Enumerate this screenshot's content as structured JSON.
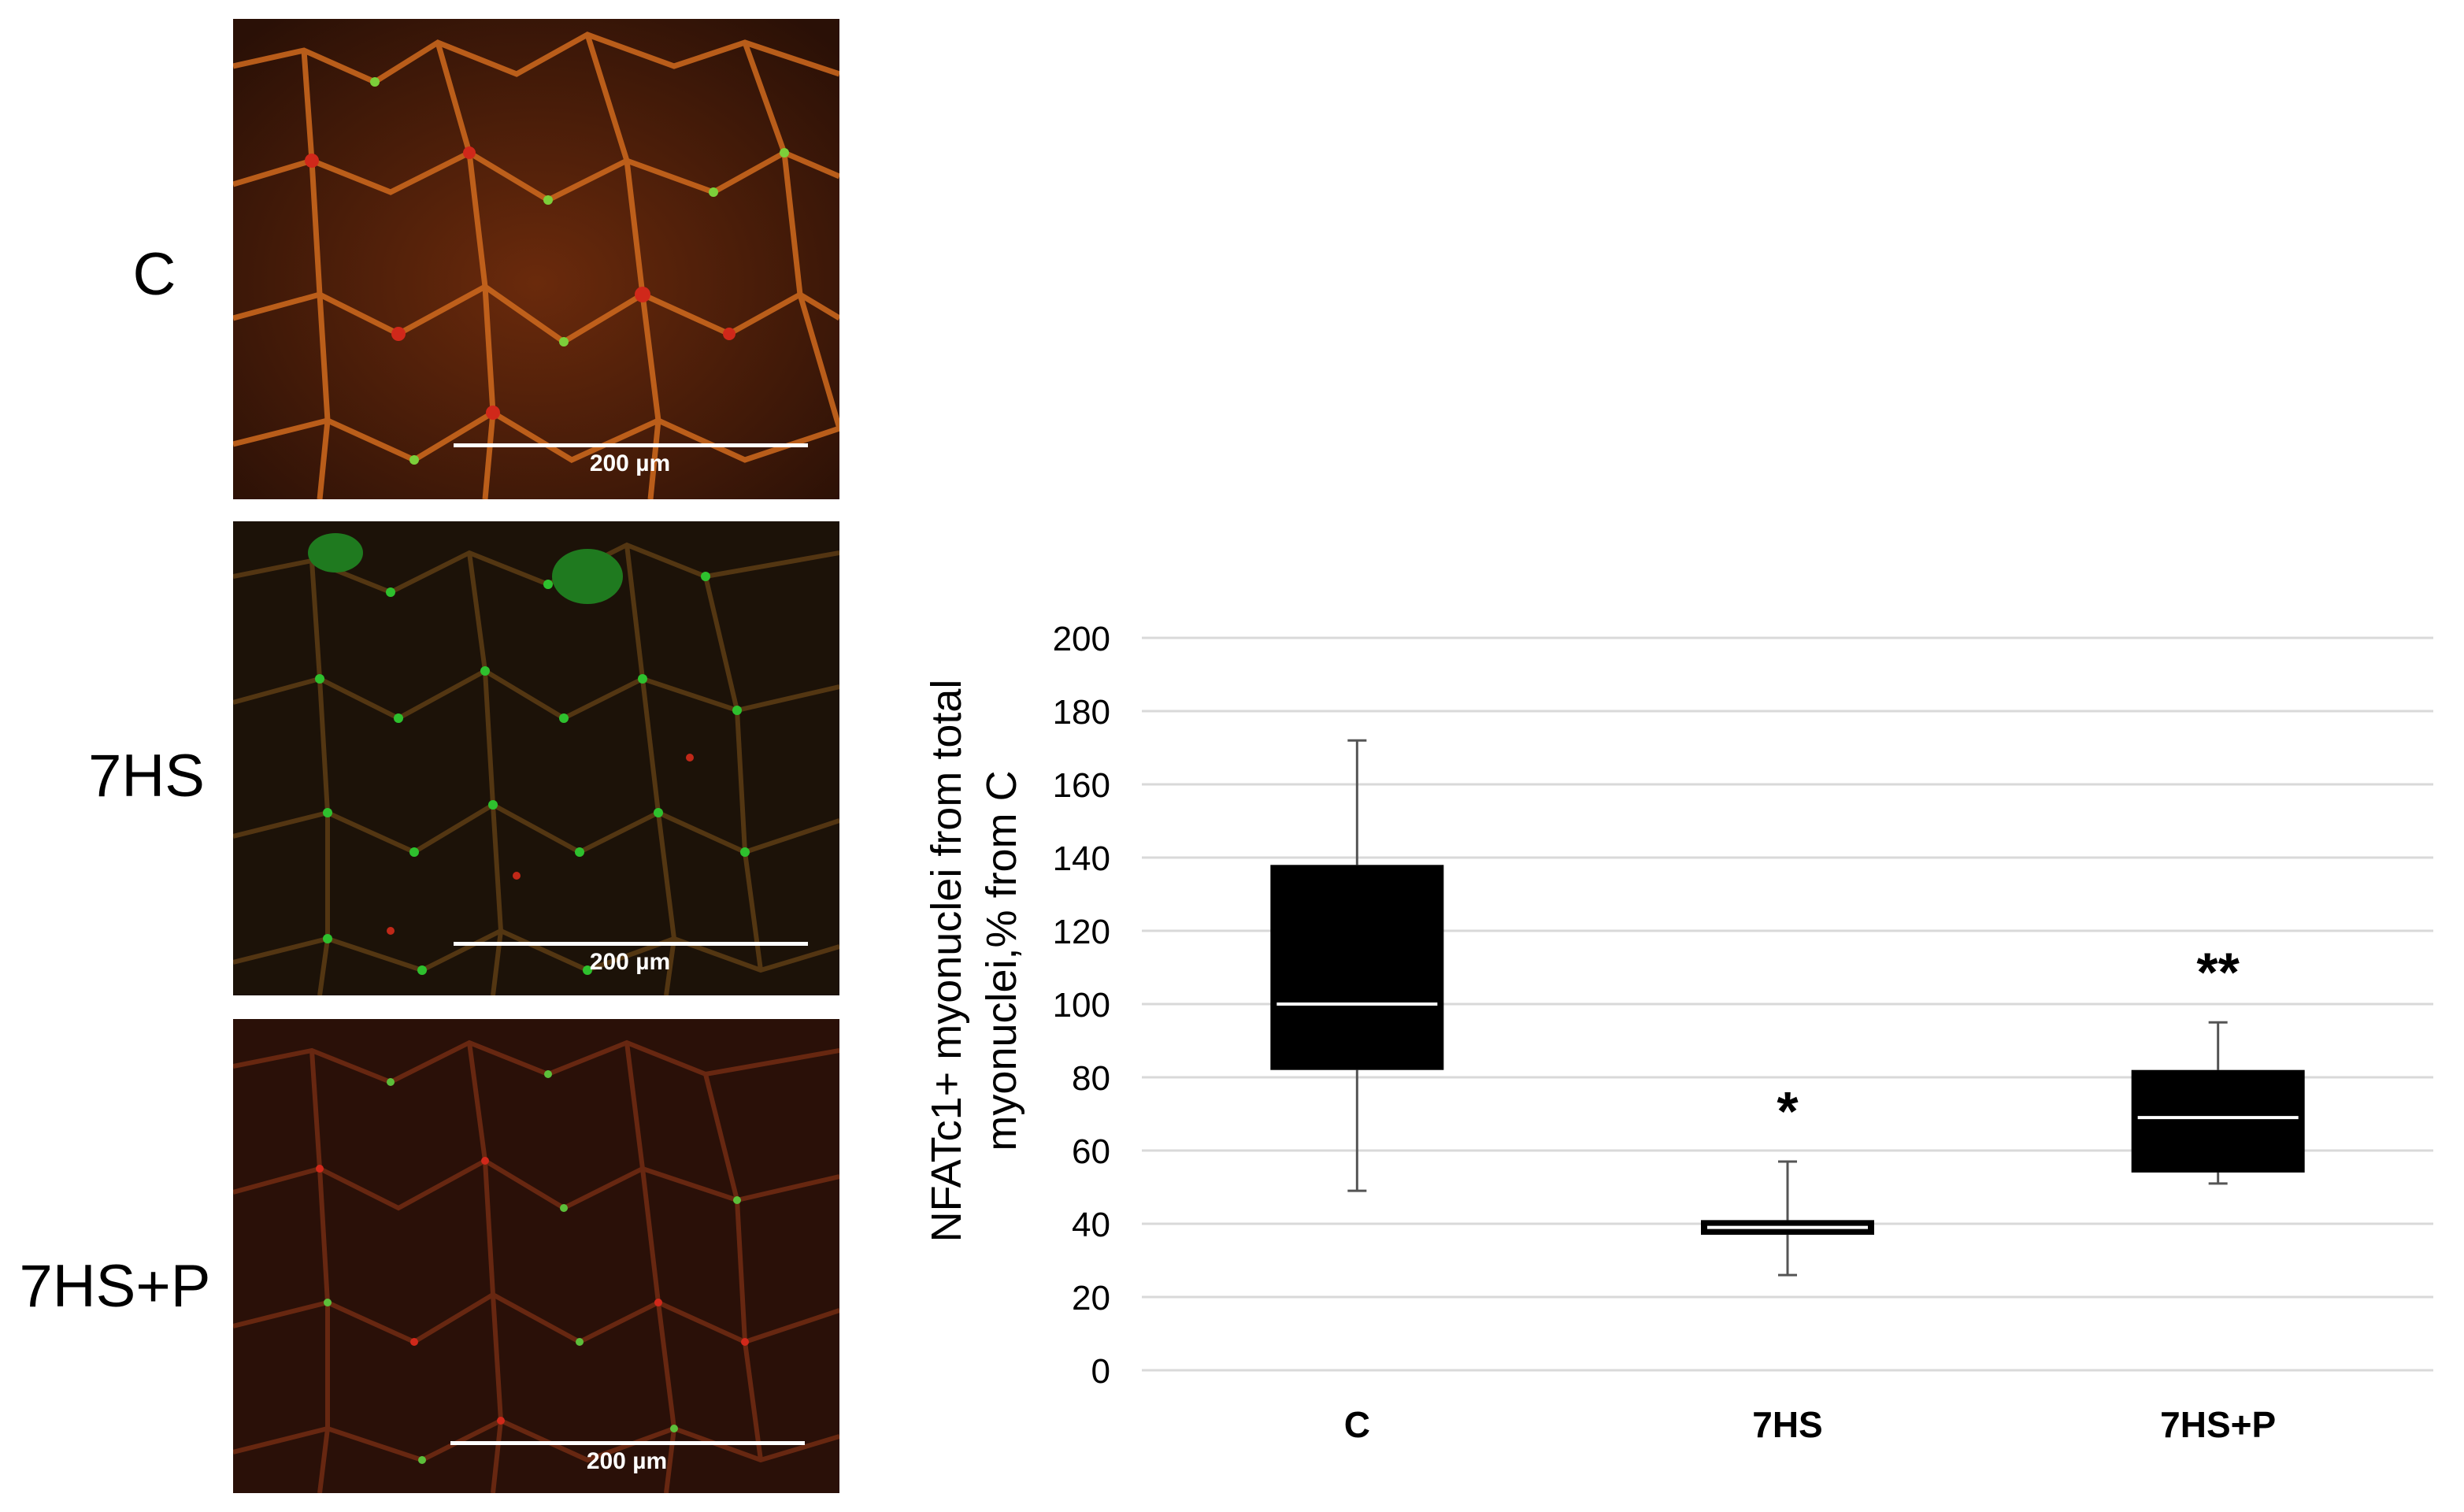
{
  "panels": [
    {
      "label": "C",
      "scale": "200 µm"
    },
    {
      "label": "7HS",
      "scale": "200 µm"
    },
    {
      "label": "7HS+P",
      "scale": "200 µm"
    }
  ],
  "colors": {
    "box_fill": "#000000",
    "median_line": "#ffffff",
    "whisker": "#555555",
    "gridline": "#d9d9d9",
    "stain_membrane": "#d0281a",
    "stain_nuclei": "#2ec02e"
  },
  "chart_data": {
    "type": "box",
    "title": "",
    "xlabel": "",
    "ylabel_lines": [
      "NFATc1+ myonuclei from total",
      "myonuclei,% from C"
    ],
    "ylim": [
      0,
      200
    ],
    "yticks": [
      0,
      20,
      40,
      60,
      80,
      100,
      120,
      140,
      160,
      180,
      200
    ],
    "grid": true,
    "categories": [
      "C",
      "7HS",
      "7HS+P"
    ],
    "boxes": [
      {
        "category": "C",
        "min": 49,
        "q1": 82,
        "median": 100,
        "q3": 138,
        "max": 172,
        "annotation": ""
      },
      {
        "category": "7HS",
        "min": 26,
        "q1": 37,
        "median": 39,
        "q3": 41,
        "max": 57,
        "annotation": "*"
      },
      {
        "category": "7HS+P",
        "min": 51,
        "q1": 54,
        "median": 69,
        "q3": 82,
        "max": 95,
        "annotation": "**"
      }
    ]
  }
}
